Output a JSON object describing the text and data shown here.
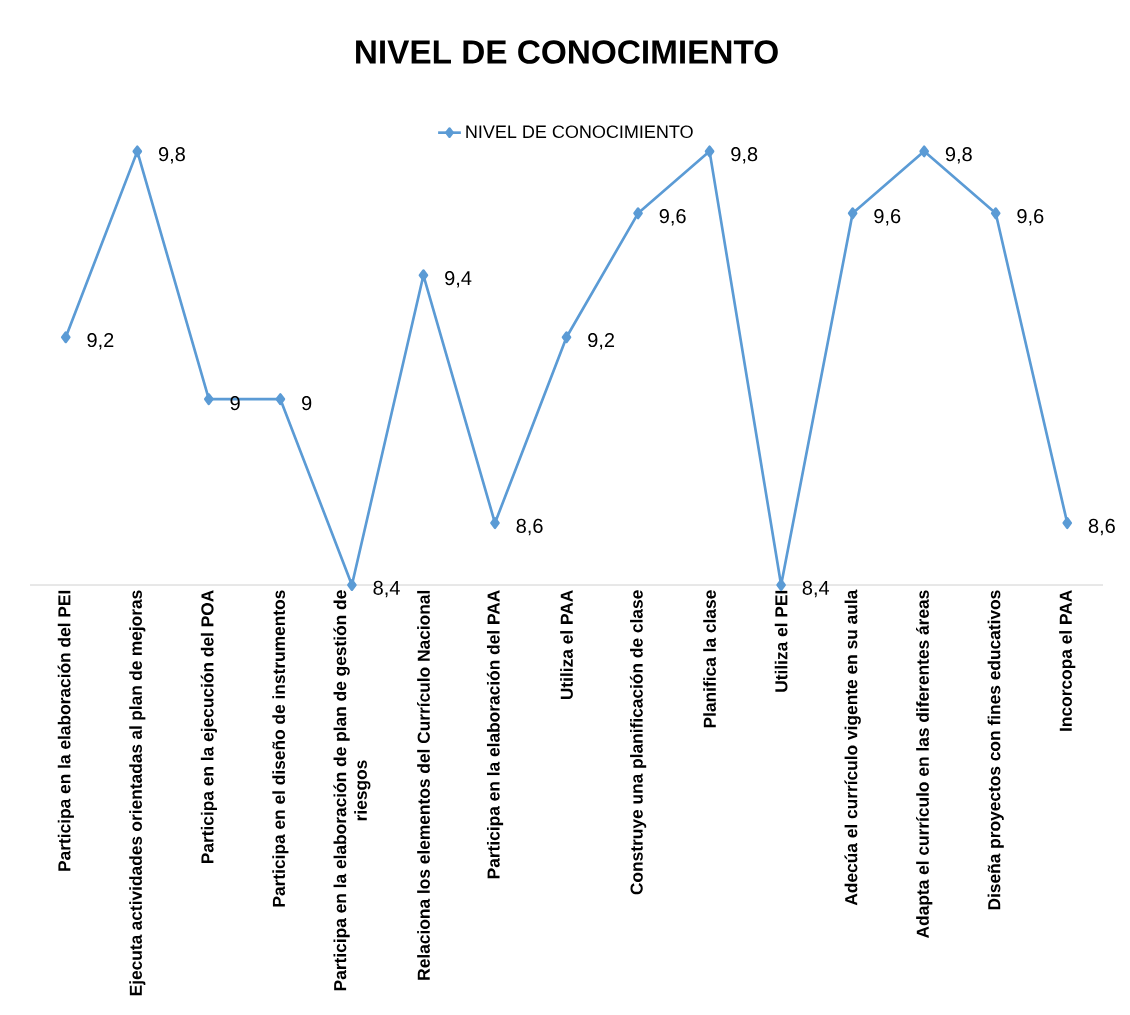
{
  "chart_data": {
    "type": "line",
    "title": "NIVEL DE CONOCIMIENTO",
    "categories": [
      "Participa en la elaboración del PEI",
      "Ejecuta actividades orientadas al plan de mejoras",
      "Participa en la ejecución del POA",
      "Participa en el diseño de instrumentos",
      "Participa en la elaboración de plan de gestión de riesgos",
      "Relaciona los elementos del Currículo Nacional",
      "Participa en la elaboración del PAA",
      "Utiliza el PAA",
      "Construye una planificación de clase",
      "Planifica la clase",
      "Utiliza el PEI",
      "Adecúa el currículo vigente en su aula",
      "Adapta el currículo en las diferentes áreas",
      "Diseña proyectos con fines educativos",
      "Incorcopa el PAA"
    ],
    "series": [
      {
        "name": "NIVEL DE CONOCIMIENTO",
        "color": "#5b9bd5",
        "values": [
          9.2,
          9.8,
          9,
          9,
          8.4,
          9.4,
          8.6,
          9.2,
          9.6,
          9.8,
          8.4,
          9.6,
          9.8,
          9.6,
          8.6
        ],
        "value_labels": [
          "9,2",
          "9,8",
          "9",
          "9",
          "8,4",
          "9,4",
          "8,6",
          "9,2",
          "9,6",
          "9,8",
          "8,4",
          "9,6",
          "9,8",
          "9,6",
          "8,6"
        ]
      }
    ],
    "tick_labels": "x",
    "legend": "top",
    "marker": "diamond",
    "line_style": "solid"
  }
}
